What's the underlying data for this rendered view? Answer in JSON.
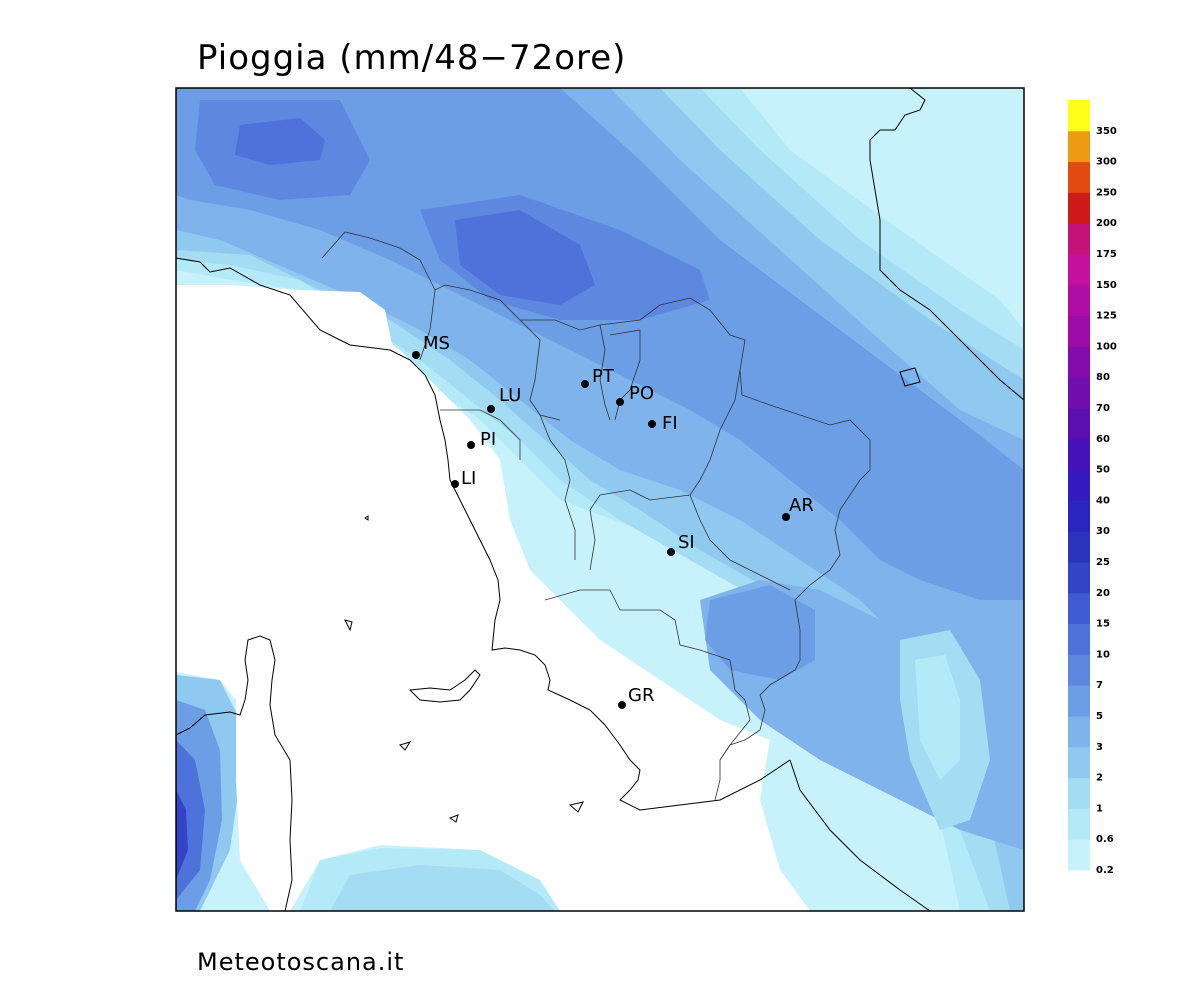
{
  "title": "Pioggia (mm/48−72ore)",
  "footer": "Meteotoscana.it",
  "cities": [
    {
      "code": "MS"
    },
    {
      "code": "LU"
    },
    {
      "code": "PT"
    },
    {
      "code": "PO"
    },
    {
      "code": "FI"
    },
    {
      "code": "PI"
    },
    {
      "code": "LI"
    },
    {
      "code": "AR"
    },
    {
      "code": "SI"
    },
    {
      "code": "GR"
    }
  ],
  "legend": {
    "levels": [
      {
        "label": "0.2",
        "color": "#c8f2fb"
      },
      {
        "label": "0.6",
        "color": "#b4e9f8"
      },
      {
        "label": "1",
        "color": "#a3dcf3"
      },
      {
        "label": "2",
        "color": "#90c9ef"
      },
      {
        "label": "3",
        "color": "#7eb3eb"
      },
      {
        "label": "5",
        "color": "#6c9ee6"
      },
      {
        "label": "7",
        "color": "#5e88e0"
      },
      {
        "label": "10",
        "color": "#4f72da"
      },
      {
        "label": "15",
        "color": "#3f5cd3"
      },
      {
        "label": "20",
        "color": "#3344c8"
      },
      {
        "label": "25",
        "color": "#2a33bd"
      },
      {
        "label": "30",
        "color": "#2a25c0"
      },
      {
        "label": "40",
        "color": "#3418c0"
      },
      {
        "label": "50",
        "color": "#4412b8"
      },
      {
        "label": "60",
        "color": "#5c0fb0"
      },
      {
        "label": "70",
        "color": "#700eae"
      },
      {
        "label": "80",
        "color": "#850cac"
      },
      {
        "label": "100",
        "color": "#9c0aaa"
      },
      {
        "label": "125",
        "color": "#b00ca6"
      },
      {
        "label": "150",
        "color": "#c4109c"
      },
      {
        "label": "175",
        "color": "#c31278"
      },
      {
        "label": "200",
        "color": "#cf1a1a"
      },
      {
        "label": "250",
        "color": "#e24a10"
      },
      {
        "label": "300",
        "color": "#ee9a10"
      },
      {
        "label": "350",
        "color": "#ffff1a"
      }
    ]
  }
}
